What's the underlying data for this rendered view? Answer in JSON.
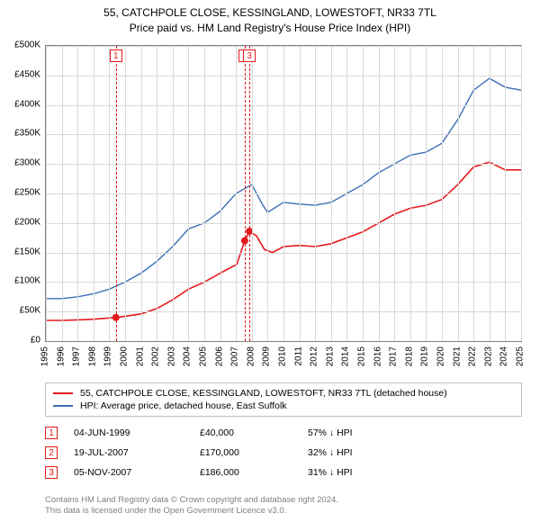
{
  "title": {
    "line1": "55, CATCHPOLE CLOSE, KESSINGLAND, LOWESTOFT, NR33 7TL",
    "line2": "Price paid vs. HM Land Registry's House Price Index (HPI)"
  },
  "chart": {
    "type": "line",
    "background_color": "#ffffff",
    "grid_color": "#d8d8d8",
    "axis_color": "#808080",
    "xlim": [
      1995,
      2025
    ],
    "ylim": [
      0,
      500000
    ],
    "ytick_step": 50000,
    "ytick_labels": [
      "£0",
      "£50K",
      "£100K",
      "£150K",
      "£200K",
      "£250K",
      "£300K",
      "£350K",
      "£400K",
      "£450K",
      "£500K"
    ],
    "xticks": [
      1995,
      1996,
      1997,
      1998,
      1999,
      2000,
      2001,
      2002,
      2003,
      2004,
      2005,
      2006,
      2007,
      2008,
      2009,
      2010,
      2011,
      2012,
      2013,
      2014,
      2015,
      2016,
      2017,
      2018,
      2019,
      2020,
      2021,
      2022,
      2023,
      2024,
      2025
    ],
    "series": [
      {
        "name": "price_paid",
        "label": "55, CATCHPOLE CLOSE, KESSINGLAND, LOWESTOFT, NR33 7TL (detached house)",
        "color": "#e31a1c",
        "line_width": 1.6,
        "data": [
          [
            1995,
            35000
          ],
          [
            1996,
            35000
          ],
          [
            1997,
            36000
          ],
          [
            1998,
            37000
          ],
          [
            1999.42,
            40000
          ],
          [
            2000,
            42000
          ],
          [
            2001,
            46000
          ],
          [
            2002,
            55000
          ],
          [
            2003,
            70000
          ],
          [
            2004,
            88000
          ],
          [
            2005,
            100000
          ],
          [
            2006,
            115000
          ],
          [
            2007.05,
            130000
          ],
          [
            2007.55,
            170000
          ],
          [
            2007.85,
            186000
          ],
          [
            2008.3,
            178000
          ],
          [
            2008.8,
            155000
          ],
          [
            2009.3,
            150000
          ],
          [
            2010,
            160000
          ],
          [
            2011,
            162000
          ],
          [
            2012,
            160000
          ],
          [
            2013,
            165000
          ],
          [
            2014,
            175000
          ],
          [
            2015,
            185000
          ],
          [
            2016,
            200000
          ],
          [
            2017,
            215000
          ],
          [
            2018,
            225000
          ],
          [
            2019,
            230000
          ],
          [
            2020,
            240000
          ],
          [
            2021,
            265000
          ],
          [
            2022,
            295000
          ],
          [
            2023,
            303000
          ],
          [
            2024,
            290000
          ],
          [
            2025,
            290000
          ]
        ]
      },
      {
        "name": "hpi",
        "label": "HPI: Average price, detached house, East Suffolk",
        "color": "#3b6fb6",
        "line_width": 1.4,
        "data": [
          [
            1995,
            72000
          ],
          [
            1996,
            72000
          ],
          [
            1997,
            75000
          ],
          [
            1998,
            80000
          ],
          [
            1999,
            88000
          ],
          [
            2000,
            100000
          ],
          [
            2001,
            115000
          ],
          [
            2002,
            135000
          ],
          [
            2003,
            160000
          ],
          [
            2004,
            190000
          ],
          [
            2005,
            200000
          ],
          [
            2006,
            220000
          ],
          [
            2007,
            250000
          ],
          [
            2008,
            265000
          ],
          [
            2008.7,
            230000
          ],
          [
            2009,
            218000
          ],
          [
            2010,
            235000
          ],
          [
            2011,
            232000
          ],
          [
            2012,
            230000
          ],
          [
            2013,
            235000
          ],
          [
            2014,
            250000
          ],
          [
            2015,
            265000
          ],
          [
            2016,
            285000
          ],
          [
            2017,
            300000
          ],
          [
            2018,
            315000
          ],
          [
            2019,
            320000
          ],
          [
            2020,
            335000
          ],
          [
            2021,
            375000
          ],
          [
            2022,
            425000
          ],
          [
            2023,
            445000
          ],
          [
            2024,
            430000
          ],
          [
            2025,
            425000
          ]
        ]
      }
    ],
    "markers": [
      {
        "n": "1",
        "x": 1999.42,
        "y": 40000,
        "color": "#e31a1c"
      },
      {
        "n": "2",
        "x": 2007.55,
        "y": 170000,
        "color": "#e31a1c"
      },
      {
        "n": "3",
        "x": 2007.85,
        "y": 186000,
        "color": "#e31a1c"
      }
    ],
    "marker_radius": 4
  },
  "legend": {
    "items": [
      {
        "color": "#e31a1c",
        "label": "55, CATCHPOLE CLOSE, KESSINGLAND, LOWESTOFT, NR33 7TL (detached house)"
      },
      {
        "color": "#3b6fb6",
        "label": "HPI: Average price, detached house, East Suffolk"
      }
    ]
  },
  "events": [
    {
      "n": "1",
      "color": "#e31a1c",
      "date": "04-JUN-1999",
      "price": "£40,000",
      "delta": "57% ↓ HPI"
    },
    {
      "n": "2",
      "color": "#e31a1c",
      "date": "19-JUL-2007",
      "price": "£170,000",
      "delta": "32% ↓ HPI"
    },
    {
      "n": "3",
      "color": "#e31a1c",
      "date": "05-NOV-2007",
      "price": "£186,000",
      "delta": "31% ↓ HPI"
    }
  ],
  "footer": {
    "line1": "Contains HM Land Registry data © Crown copyright and database right 2024.",
    "line2": "This data is licensed under the Open Government Licence v3.0."
  }
}
